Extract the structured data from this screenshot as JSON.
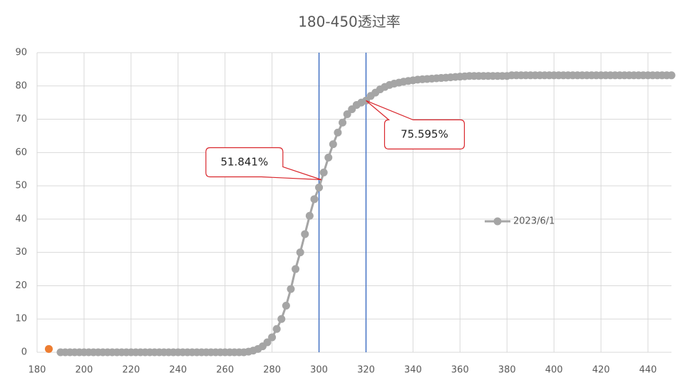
{
  "chart_data": {
    "type": "line",
    "title": "180-450透过率",
    "xlim": [
      180,
      450
    ],
    "xticks": [
      180,
      200,
      220,
      240,
      260,
      280,
      300,
      320,
      340,
      360,
      380,
      400,
      420,
      440
    ],
    "ylim": [
      0,
      90
    ],
    "yticks": [
      0,
      10,
      20,
      30,
      40,
      50,
      60,
      70,
      80,
      90
    ],
    "grid": true,
    "legend": "right",
    "markers": true,
    "series": [
      {
        "name": "2023/6/1",
        "color": "#a5a5a5",
        "x": [
          190,
          192,
          194,
          196,
          198,
          200,
          202,
          204,
          206,
          208,
          210,
          212,
          214,
          216,
          218,
          220,
          222,
          224,
          226,
          228,
          230,
          232,
          234,
          236,
          238,
          240,
          242,
          244,
          246,
          248,
          250,
          252,
          254,
          256,
          258,
          260,
          262,
          264,
          266,
          268,
          270,
          272,
          274,
          276,
          278,
          280,
          282,
          284,
          286,
          288,
          290,
          292,
          294,
          296,
          298,
          300,
          302,
          304,
          306,
          308,
          310,
          312,
          314,
          316,
          318,
          320,
          322,
          324,
          326,
          328,
          330,
          332,
          334,
          336,
          338,
          340,
          342,
          344,
          346,
          348,
          350,
          352,
          354,
          356,
          358,
          360,
          362,
          364,
          366,
          368,
          370,
          372,
          374,
          376,
          378,
          380,
          382,
          384,
          386,
          388,
          390,
          392,
          394,
          396,
          398,
          400,
          402,
          404,
          406,
          408,
          410,
          412,
          414,
          416,
          418,
          420,
          422,
          424,
          426,
          428,
          430,
          432,
          434,
          436,
          438,
          440,
          442,
          444,
          446,
          448,
          450
        ],
        "values": [
          0,
          0,
          0,
          0,
          0,
          0,
          0,
          0,
          0,
          0,
          0,
          0,
          0,
          0,
          0,
          0,
          0,
          0,
          0,
          0,
          0,
          0,
          0,
          0,
          0,
          0,
          0,
          0,
          0,
          0,
          0,
          0,
          0,
          0,
          0,
          0,
          0,
          0,
          0,
          0,
          0.2,
          0.5,
          1,
          1.8,
          3,
          4.5,
          7,
          10,
          14,
          19,
          25,
          30,
          35.5,
          41,
          46,
          49.5,
          54,
          58.5,
          62.5,
          66,
          69,
          71.5,
          73,
          74.3,
          75,
          75.6,
          77,
          78,
          79,
          79.7,
          80.3,
          80.7,
          81,
          81.3,
          81.5,
          81.7,
          81.9,
          82,
          82.1,
          82.2,
          82.3,
          82.4,
          82.5,
          82.6,
          82.7,
          82.8,
          82.9,
          83,
          83,
          83,
          83,
          83,
          83,
          83,
          83,
          83,
          83.2,
          83.2,
          83.2,
          83.2,
          83.2,
          83.2,
          83.2,
          83.2,
          83.2,
          83.2,
          83.2,
          83.2,
          83.2,
          83.2,
          83.2,
          83.2,
          83.2,
          83.2,
          83.2,
          83.2,
          83.2,
          83.2,
          83.2,
          83.2,
          83.2,
          83.2,
          83.2,
          83.2,
          83.2,
          83.2,
          83.2,
          83.2,
          83.2,
          83.2,
          83.2
        ]
      },
      {
        "color": "#ed7d31",
        "x": [
          185
        ],
        "values": [
          1
        ]
      }
    ],
    "vlines": [
      300,
      320
    ],
    "vline_color": "#4472c4",
    "annotations": [
      {
        "x": 301,
        "y": 51.841,
        "label": "51.841%"
      },
      {
        "x": 320,
        "y": 75.595,
        "label": "75.595%"
      }
    ],
    "annotation_color": "#d9262c"
  }
}
